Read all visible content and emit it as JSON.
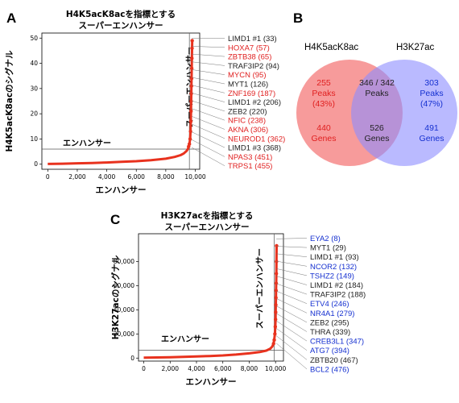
{
  "colors": {
    "curve": "#e8321e",
    "red": "#e02020",
    "blue": "#1530d0",
    "black": "#222222",
    "venn_left": "#f47a7a",
    "venn_right": "#8c8cff",
    "venn_mid": "#8a4fa0"
  },
  "panels": {
    "A": {
      "letter": "A"
    },
    "B": {
      "letter": "B"
    },
    "C": {
      "letter": "C"
    }
  },
  "chart_data": [
    {
      "type": "scatter",
      "panel": "A",
      "title_line1": "H4K5acK8acを指標とする",
      "title_line2": "スーパーエンハンサー",
      "xlabel": "エンハンサー",
      "ylabel": "H4K5acK8acのシグナル",
      "xlim": [
        -400,
        10300
      ],
      "ylim": [
        -2,
        52
      ],
      "xticks": [
        0,
        2000,
        4000,
        6000,
        8000,
        10000
      ],
      "xtick_labels": [
        "0",
        "2,000",
        "4,000",
        "6,000",
        "8,000",
        "10,000"
      ],
      "yticks": [
        0,
        10,
        20,
        30,
        40,
        50
      ],
      "ytick_labels": [
        "0",
        "10",
        "20",
        "30",
        "40",
        "50"
      ],
      "cutoff_x": 9600,
      "cutoff_y": 6,
      "region_enhancer": "エンハンサー",
      "region_super": "スーパーエンハンサー",
      "curve_points": [
        [
          0,
          0.1
        ],
        [
          1000,
          0.2
        ],
        [
          2000,
          0.35
        ],
        [
          3000,
          0.5
        ],
        [
          4000,
          0.7
        ],
        [
          5000,
          0.95
        ],
        [
          6000,
          1.2
        ],
        [
          7000,
          1.6
        ],
        [
          8000,
          2.2
        ],
        [
          8600,
          2.9
        ],
        [
          9000,
          3.6
        ],
        [
          9200,
          4.2
        ],
        [
          9400,
          5.2
        ],
        [
          9500,
          6.0
        ],
        [
          9550,
          7.0
        ],
        [
          9600,
          8.0
        ],
        [
          9650,
          10
        ],
        [
          9680,
          13
        ],
        [
          9700,
          17
        ],
        [
          9710,
          21
        ],
        [
          9720,
          25
        ],
        [
          9730,
          28
        ],
        [
          9740,
          31
        ],
        [
          9750,
          34
        ],
        [
          9760,
          38
        ],
        [
          9770,
          42
        ],
        [
          9780,
          46
        ],
        [
          9790,
          49
        ]
      ],
      "genes": [
        {
          "label": "LIMD1 #1 (33)",
          "color": "#222222"
        },
        {
          "label": "HOXA7 (57)",
          "color": "#e02020"
        },
        {
          "label": "ZBTB38 (65)",
          "color": "#e02020"
        },
        {
          "label": "TRAF3IP2 (94)",
          "color": "#222222"
        },
        {
          "label": "MYCN (95)",
          "color": "#e02020"
        },
        {
          "label": "MYT1 (126)",
          "color": "#222222"
        },
        {
          "label": "ZNF169 (187)",
          "color": "#e02020"
        },
        {
          "label": "LIMD1 #2 (206)",
          "color": "#222222"
        },
        {
          "label": "ZEB2 (220)",
          "color": "#222222"
        },
        {
          "label": "NFIC (238)",
          "color": "#e02020"
        },
        {
          "label": "AKNA (306)",
          "color": "#e02020"
        },
        {
          "label": "NEUROD1 (362)",
          "color": "#e02020"
        },
        {
          "label": "LIMD1 #3 (368)",
          "color": "#222222"
        },
        {
          "label": "NPAS3 (451)",
          "color": "#e02020"
        },
        {
          "label": "TRPS1 (455)",
          "color": "#e02020"
        }
      ]
    },
    {
      "type": "scatter",
      "panel": "C",
      "title_line1": "H3K27acを指標とする",
      "title_line2": "スーパーエンハンサー",
      "xlabel": "エンハンサー",
      "ylabel": "H3K27acのシグナル",
      "xlim": [
        -400,
        10600
      ],
      "ylim": [
        -2500,
        103000
      ],
      "xticks": [
        0,
        2000,
        4000,
        6000,
        8000,
        10000
      ],
      "xtick_labels": [
        "0",
        "2,000",
        "4,000",
        "6,000",
        "8,000",
        "10,000"
      ],
      "yticks": [
        0,
        20000,
        40000,
        60000,
        80000
      ],
      "ytick_labels": [
        "0",
        "20,000",
        "40,000",
        "60,000",
        "80,000"
      ],
      "cutoff_x": 9900,
      "cutoff_y": 6500,
      "region_enhancer": "エンハンサー",
      "region_super": "スーパーエンハンサー",
      "curve_points": [
        [
          0,
          300
        ],
        [
          1000,
          500
        ],
        [
          2000,
          700
        ],
        [
          3000,
          950
        ],
        [
          4000,
          1300
        ],
        [
          5000,
          1700
        ],
        [
          6000,
          2200
        ],
        [
          7000,
          2900
        ],
        [
          8000,
          3900
        ],
        [
          8800,
          5000
        ],
        [
          9300,
          6200
        ],
        [
          9600,
          7800
        ],
        [
          9750,
          9500
        ],
        [
          9850,
          12000
        ],
        [
          9900,
          15000
        ],
        [
          9950,
          20000
        ],
        [
          9980,
          26000
        ],
        [
          10000,
          32000
        ],
        [
          10010,
          38000
        ],
        [
          10020,
          44000
        ],
        [
          10030,
          50000
        ],
        [
          10040,
          56000
        ],
        [
          10050,
          62000
        ],
        [
          10060,
          70000
        ],
        [
          10070,
          80000
        ],
        [
          10080,
          93000
        ]
      ],
      "genes": [
        {
          "label": "EYA2 (8)",
          "color": "#1530d0"
        },
        {
          "label": "MYT1 (29)",
          "color": "#222222"
        },
        {
          "label": "LIMD1 #1 (93)",
          "color": "#222222"
        },
        {
          "label": "NCOR2 (132)",
          "color": "#1530d0"
        },
        {
          "label": "TSHZ2 (149)",
          "color": "#1530d0"
        },
        {
          "label": "LIMD1 #2 (184)",
          "color": "#222222"
        },
        {
          "label": "TRAF3IP2 (188)",
          "color": "#222222"
        },
        {
          "label": "ETV4 (246)",
          "color": "#1530d0"
        },
        {
          "label": "NR4A1 (279)",
          "color": "#1530d0"
        },
        {
          "label": "ZEB2 (295)",
          "color": "#222222"
        },
        {
          "label": "THRA (339)",
          "color": "#222222"
        },
        {
          "label": "CREB3L1 (347)",
          "color": "#1530d0"
        },
        {
          "label": "ATG7 (394)",
          "color": "#1530d0"
        },
        {
          "label": "ZBTB20 (467)",
          "color": "#222222"
        },
        {
          "label": "BCL2 (476)",
          "color": "#1530d0"
        }
      ]
    }
  ],
  "venn": {
    "left_name": "H4K5acK8ac",
    "right_name": "H3K27ac",
    "left_peaks": "255",
    "left_peaks_word": "Peaks",
    "left_peaks_pct": "(43%)",
    "left_genes": "440",
    "left_genes_word": "Genes",
    "mid_peaks": "346 / 342",
    "mid_peaks_word": "Peaks",
    "mid_genes": "526",
    "mid_genes_word": "Genes",
    "right_peaks": "303",
    "right_peaks_word": "Peaks",
    "right_peaks_pct": "(47%)",
    "right_genes": "491",
    "right_genes_word": "Genes"
  }
}
